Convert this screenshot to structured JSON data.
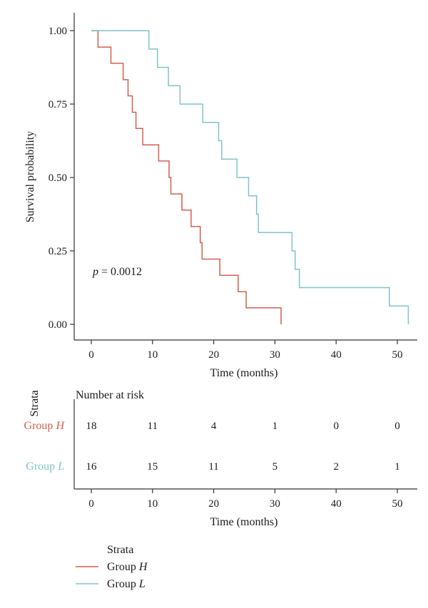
{
  "chart_data": [
    {
      "type": "line",
      "subtype": "kaplan-meier",
      "xlabel": "Time (months)",
      "ylabel": "Survival probability",
      "xlim": [
        0,
        52
      ],
      "ylim": [
        0,
        1
      ],
      "xticks": [
        "0",
        "10",
        "20",
        "30",
        "40",
        "50"
      ],
      "yticks": [
        "0.00",
        "0.25",
        "0.50",
        "0.75",
        "1.00"
      ],
      "grid": false,
      "annotation": {
        "prefix": "p",
        "value": " = 0.0012"
      },
      "series": [
        {
          "name": "Group H",
          "color": "#d45f4f",
          "points": [
            [
              0,
              1.0
            ],
            [
              1.1,
              0.944
            ],
            [
              3.2,
              0.889
            ],
            [
              5.2,
              0.833
            ],
            [
              6.0,
              0.778
            ],
            [
              6.7,
              0.722
            ],
            [
              7.3,
              0.667
            ],
            [
              8.4,
              0.611
            ],
            [
              11.0,
              0.556
            ],
            [
              12.7,
              0.5
            ],
            [
              13.0,
              0.444
            ],
            [
              14.8,
              0.389
            ],
            [
              16.3,
              0.333
            ],
            [
              17.8,
              0.278
            ],
            [
              18.1,
              0.222
            ],
            [
              21.0,
              0.167
            ],
            [
              24.0,
              0.111
            ],
            [
              25.3,
              0.056
            ],
            [
              31.0,
              0.0
            ]
          ]
        },
        {
          "name": "Group L",
          "color": "#7fc4c8",
          "points": [
            [
              0,
              1.0
            ],
            [
              9.4,
              0.9375
            ],
            [
              10.8,
              0.875
            ],
            [
              12.6,
              0.8125
            ],
            [
              14.5,
              0.75
            ],
            [
              18.2,
              0.6875
            ],
            [
              20.8,
              0.625
            ],
            [
              21.3,
              0.5625
            ],
            [
              23.8,
              0.5
            ],
            [
              25.7,
              0.4375
            ],
            [
              27.0,
              0.375
            ],
            [
              27.3,
              0.3125
            ],
            [
              32.8,
              0.25
            ],
            [
              33.3,
              0.1875
            ],
            [
              34.0,
              0.125
            ],
            [
              48.7,
              0.0625
            ],
            [
              51.8,
              0.0
            ]
          ]
        }
      ]
    },
    {
      "type": "table",
      "title": "Number at risk",
      "ylabel": "Strata",
      "xlabel": "Time (months)",
      "xlim": [
        0,
        52
      ],
      "xticks": [
        "0",
        "10",
        "20",
        "30",
        "40",
        "50"
      ],
      "times": [
        0,
        10,
        20,
        30,
        40,
        50
      ],
      "rows": [
        {
          "name": "Group",
          "italic": "H",
          "color": "#d45f4f",
          "values": [
            18,
            11,
            4,
            1,
            0,
            0
          ]
        },
        {
          "name": "Group",
          "italic": "L",
          "color": "#7fc4c8",
          "values": [
            16,
            15,
            11,
            5,
            2,
            1
          ]
        }
      ]
    }
  ],
  "legend": {
    "title": "Strata",
    "items": [
      {
        "name": "Group",
        "italic": "H",
        "color": "#d45f4f"
      },
      {
        "name": "Group",
        "italic": "L",
        "color": "#7fc4c8"
      }
    ]
  }
}
